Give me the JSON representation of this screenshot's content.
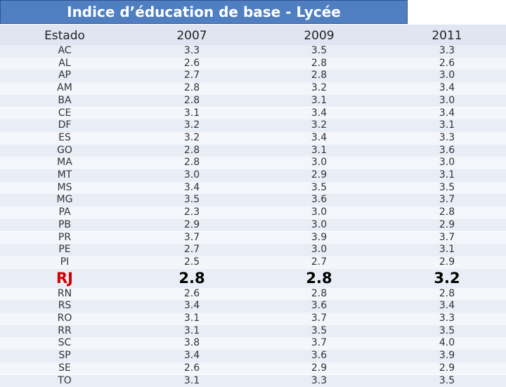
{
  "header": {
    "title": "Indice d’éducation de base - Lycée"
  },
  "table": {
    "columns": [
      "Estado",
      "2007",
      "2009",
      "2011"
    ],
    "rows": [
      [
        "AC",
        "3.3",
        "3.5",
        "3.3"
      ],
      [
        "AL",
        "2.6",
        "2.8",
        "2.6"
      ],
      [
        "AP",
        "2.7",
        "2.8",
        "3.0"
      ],
      [
        "AM",
        "2.8",
        "3.2",
        "3.4"
      ],
      [
        "BA",
        "2.8",
        "3.1",
        "3.0"
      ],
      [
        "CE",
        "3.1",
        "3.4",
        "3.4"
      ],
      [
        "DF",
        "3.2",
        "3.2",
        "3.1"
      ],
      [
        "ES",
        "3.2",
        "3.4",
        "3.3"
      ],
      [
        "GO",
        "2.8",
        "3.1",
        "3.6"
      ],
      [
        "MA",
        "2.8",
        "3.0",
        "3.0"
      ],
      [
        "MT",
        "3.0",
        "2.9",
        "3.1"
      ],
      [
        "MS",
        "3.4",
        "3.5",
        "3.5"
      ],
      [
        "MG",
        "3.5",
        "3.6",
        "3.7"
      ],
      [
        "PA",
        "2.3",
        "3.0",
        "2.8"
      ],
      [
        "PB",
        "2.9",
        "3.0",
        "2.9"
      ],
      [
        "PR",
        "3.7",
        "3.9",
        "3.7"
      ],
      [
        "PE",
        "2.7",
        "3.0",
        "3.1"
      ],
      [
        "PI",
        "2.5",
        "2.7",
        "2.9"
      ],
      [
        "RJ",
        "2.8",
        "2.8",
        "3.2"
      ],
      [
        "RN",
        "2.6",
        "2.8",
        "2.8"
      ],
      [
        "RS",
        "3.4",
        "3.6",
        "3.4"
      ],
      [
        "RO",
        "3.1",
        "3.7",
        "3.3"
      ],
      [
        "RR",
        "3.1",
        "3.5",
        "3.5"
      ],
      [
        "SC",
        "3.8",
        "3.7",
        "4.0"
      ],
      [
        "SP",
        "3.4",
        "3.6",
        "3.9"
      ],
      [
        "SE",
        "2.6",
        "2.9",
        "2.9"
      ],
      [
        "TO",
        "3.1",
        "3.3",
        "3.5"
      ]
    ],
    "highlight_row": "RJ"
  }
}
